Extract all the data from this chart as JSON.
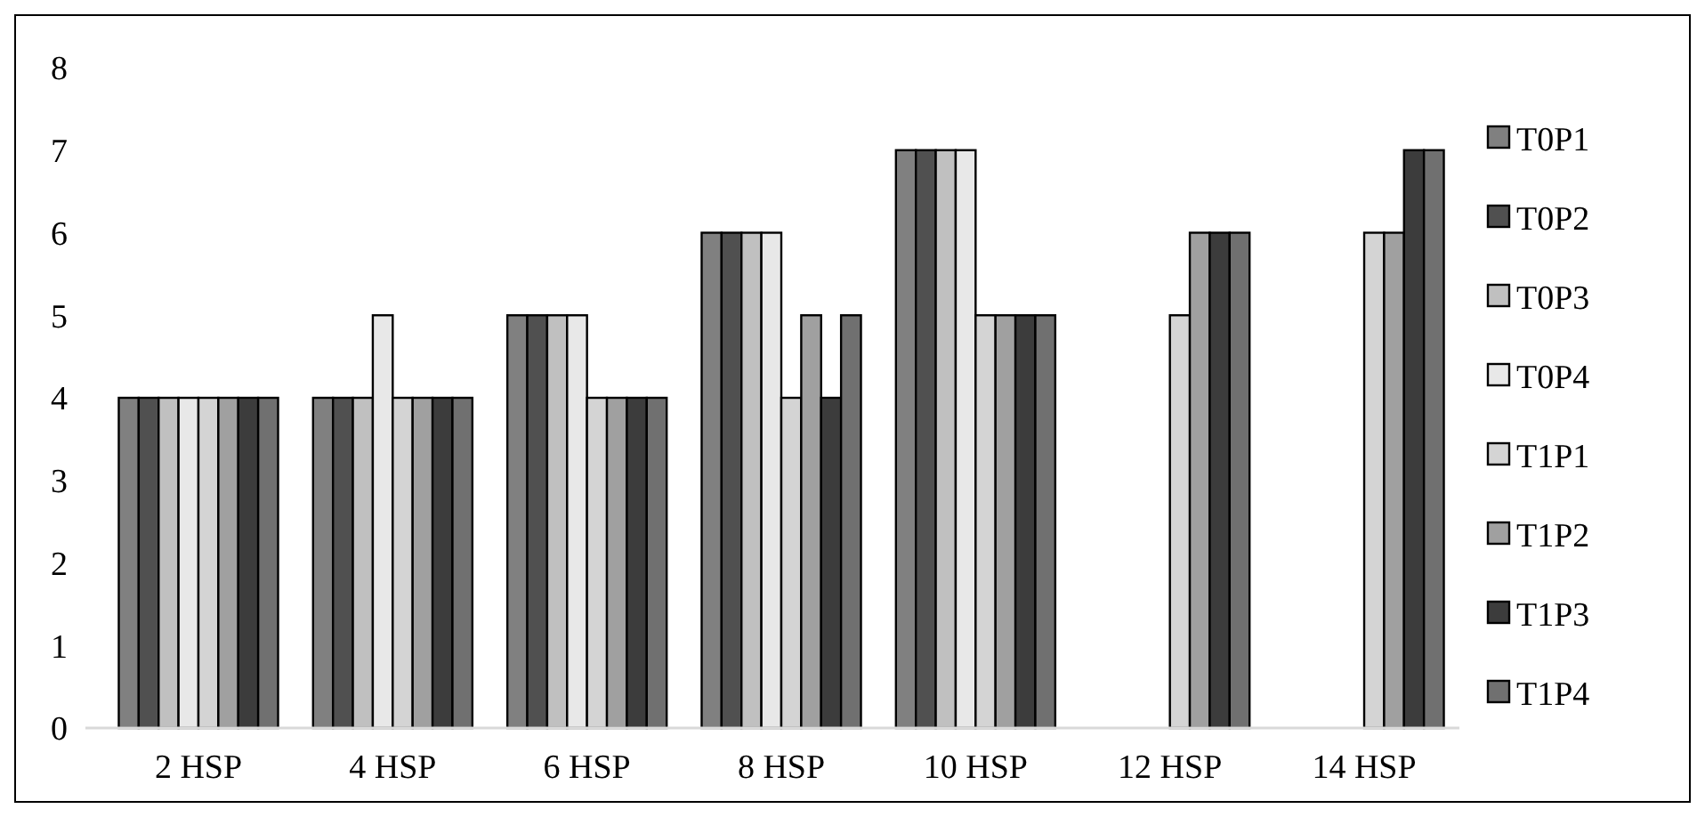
{
  "chart_data": {
    "type": "bar",
    "categories": [
      "2 HSP",
      "4 HSP",
      "6 HSP",
      "8 HSP",
      "10 HSP",
      "12 HSP",
      "14 HSP"
    ],
    "series": [
      {
        "name": "T0P1",
        "color": "#808080",
        "values": [
          4,
          4,
          5,
          6,
          7,
          null,
          null
        ]
      },
      {
        "name": "T0P2",
        "color": "#505050",
        "values": [
          4,
          4,
          5,
          6,
          7,
          null,
          null
        ]
      },
      {
        "name": "T0P3",
        "color": "#c0c0c0",
        "values": [
          4,
          4,
          5,
          6,
          7,
          null,
          null
        ]
      },
      {
        "name": "T0P4",
        "color": "#e8e8e8",
        "values": [
          4,
          5,
          5,
          6,
          7,
          null,
          null
        ]
      },
      {
        "name": "T1P1",
        "color": "#d4d4d4",
        "values": [
          4,
          4,
          4,
          4,
          5,
          5,
          6
        ]
      },
      {
        "name": "T1P2",
        "color": "#a0a0a0",
        "values": [
          4,
          4,
          4,
          5,
          5,
          6,
          6
        ]
      },
      {
        "name": "T1P3",
        "color": "#3c3c3c",
        "values": [
          4,
          4,
          4,
          4,
          5,
          6,
          7
        ]
      },
      {
        "name": "T1P4",
        "color": "#707070",
        "values": [
          4,
          4,
          4,
          5,
          5,
          6,
          7
        ]
      }
    ],
    "ylim": [
      0,
      8
    ],
    "yticks": [
      0,
      1,
      2,
      3,
      4,
      5,
      6,
      7,
      8
    ],
    "grid": false,
    "legend": "right"
  }
}
